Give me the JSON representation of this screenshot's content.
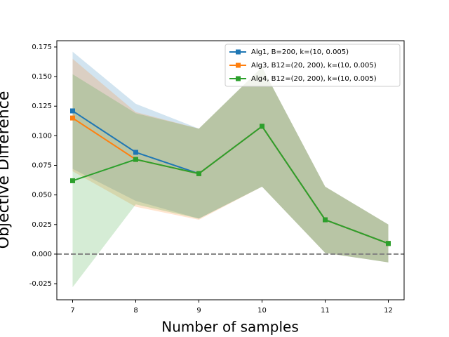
{
  "chart_data": {
    "type": "line",
    "xlabel": "Number of samples",
    "ylabel": "Objective Difference",
    "x": [
      7,
      8,
      9,
      10,
      11,
      12
    ],
    "xlim": [
      6.75,
      12.25
    ],
    "xticks": [
      7,
      8,
      9,
      10,
      11,
      12
    ],
    "ylim": [
      -0.0386,
      0.1803
    ],
    "yticks": [
      -0.025,
      {
        "value": 0,
        "label": "0.000"
      },
      0.025,
      {
        "value": 0.05,
        "label": "0.050"
      },
      0.075,
      {
        "value": 0.1,
        "label": "0.100"
      },
      0.125,
      {
        "value": 0.15,
        "label": "0.150"
      },
      0.175
    ],
    "hline": 0,
    "hline_color": "#808080",
    "legend": "upper right",
    "series": [
      {
        "name": "Alg1, B=200, k=(10, 0.005)",
        "color": "#1f77b4",
        "values": [
          0.121,
          0.086,
          0.068,
          0.108,
          0.029,
          0.009
        ],
        "lower": [
          0.072,
          0.045,
          0.03,
          0.057,
          0.001,
          -0.007
        ],
        "upper": [
          0.171,
          0.127,
          0.106,
          0.158,
          0.057,
          0.025
        ]
      },
      {
        "name": "Alg3, B12=(20, 200), k=(10, 0.005)",
        "color": "#ff7f0e",
        "values": [
          0.115,
          0.08,
          0.068,
          0.108,
          0.029,
          0.009
        ],
        "lower": [
          0.07,
          0.04,
          0.029,
          0.057,
          0.001,
          -0.007
        ],
        "upper": [
          0.165,
          0.12,
          0.106,
          0.158,
          0.057,
          0.025
        ]
      },
      {
        "name": "Alg4, B12=(20, 200), k=(10, 0.005)",
        "color": "#2ca02c",
        "values": [
          0.062,
          0.08,
          0.068,
          0.108,
          0.029,
          0.009
        ],
        "lower": [
          -0.028,
          0.042,
          0.03,
          0.057,
          0.001,
          -0.007
        ],
        "upper": [
          0.152,
          0.119,
          0.106,
          0.158,
          0.057,
          0.025
        ]
      }
    ]
  }
}
